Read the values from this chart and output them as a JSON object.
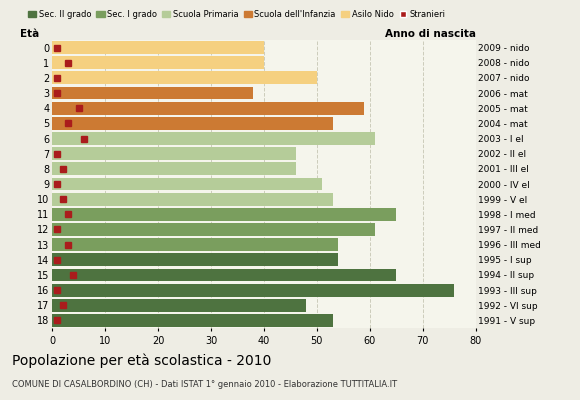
{
  "ages": [
    0,
    1,
    2,
    3,
    4,
    5,
    6,
    7,
    8,
    9,
    10,
    11,
    12,
    13,
    14,
    15,
    16,
    17,
    18
  ],
  "years": [
    "2009 - nido",
    "2008 - nido",
    "2007 - nido",
    "2006 - mat",
    "2005 - mat",
    "2004 - mat",
    "2003 - I el",
    "2002 - II el",
    "2001 - III el",
    "2000 - IV el",
    "1999 - V el",
    "1998 - I med",
    "1997 - II med",
    "1996 - III med",
    "1995 - I sup",
    "1994 - II sup",
    "1993 - III sup",
    "1992 - VI sup",
    "1991 - V sup"
  ],
  "values": [
    40,
    40,
    50,
    38,
    59,
    53,
    61,
    46,
    46,
    51,
    53,
    65,
    61,
    54,
    54,
    65,
    76,
    48,
    53
  ],
  "stranieri": [
    1,
    3,
    1,
    1,
    5,
    3,
    6,
    1,
    2,
    1,
    2,
    3,
    1,
    3,
    1,
    4,
    1,
    2,
    1
  ],
  "bar_colors": [
    "#f5d080",
    "#f5d080",
    "#f5d080",
    "#cc7a33",
    "#cc7a33",
    "#cc7a33",
    "#b5cc99",
    "#b5cc99",
    "#b5cc99",
    "#b5cc99",
    "#b5cc99",
    "#7a9e5e",
    "#7a9e5e",
    "#7a9e5e",
    "#4e7340",
    "#4e7340",
    "#4e7340",
    "#4e7340",
    "#4e7340"
  ],
  "legend_labels": [
    "Sec. II grado",
    "Sec. I grado",
    "Scuola Primaria",
    "Scuola dell'Infanzia",
    "Asilo Nido",
    "Stranieri"
  ],
  "legend_colors": [
    "#4e7340",
    "#7a9e5e",
    "#b5cc99",
    "#cc7a33",
    "#f5d080",
    "#aa1c1c"
  ],
  "stranieri_color": "#aa1c1c",
  "xlabel_ticks": [
    0,
    10,
    20,
    30,
    40,
    50,
    60,
    70,
    80
  ],
  "title1": "Popolazione per età scolastica - 2010",
  "title2": "COMUNE DI CASALBORDINO (CH) - Dati ISTAT 1° gennaio 2010 - Elaborazione TUTTITALIA.IT",
  "ylabel_left": "Età",
  "ylabel_right": "Anno di nascita",
  "bg_color": "#eeede4",
  "plot_bg_color": "#f5f5ec"
}
